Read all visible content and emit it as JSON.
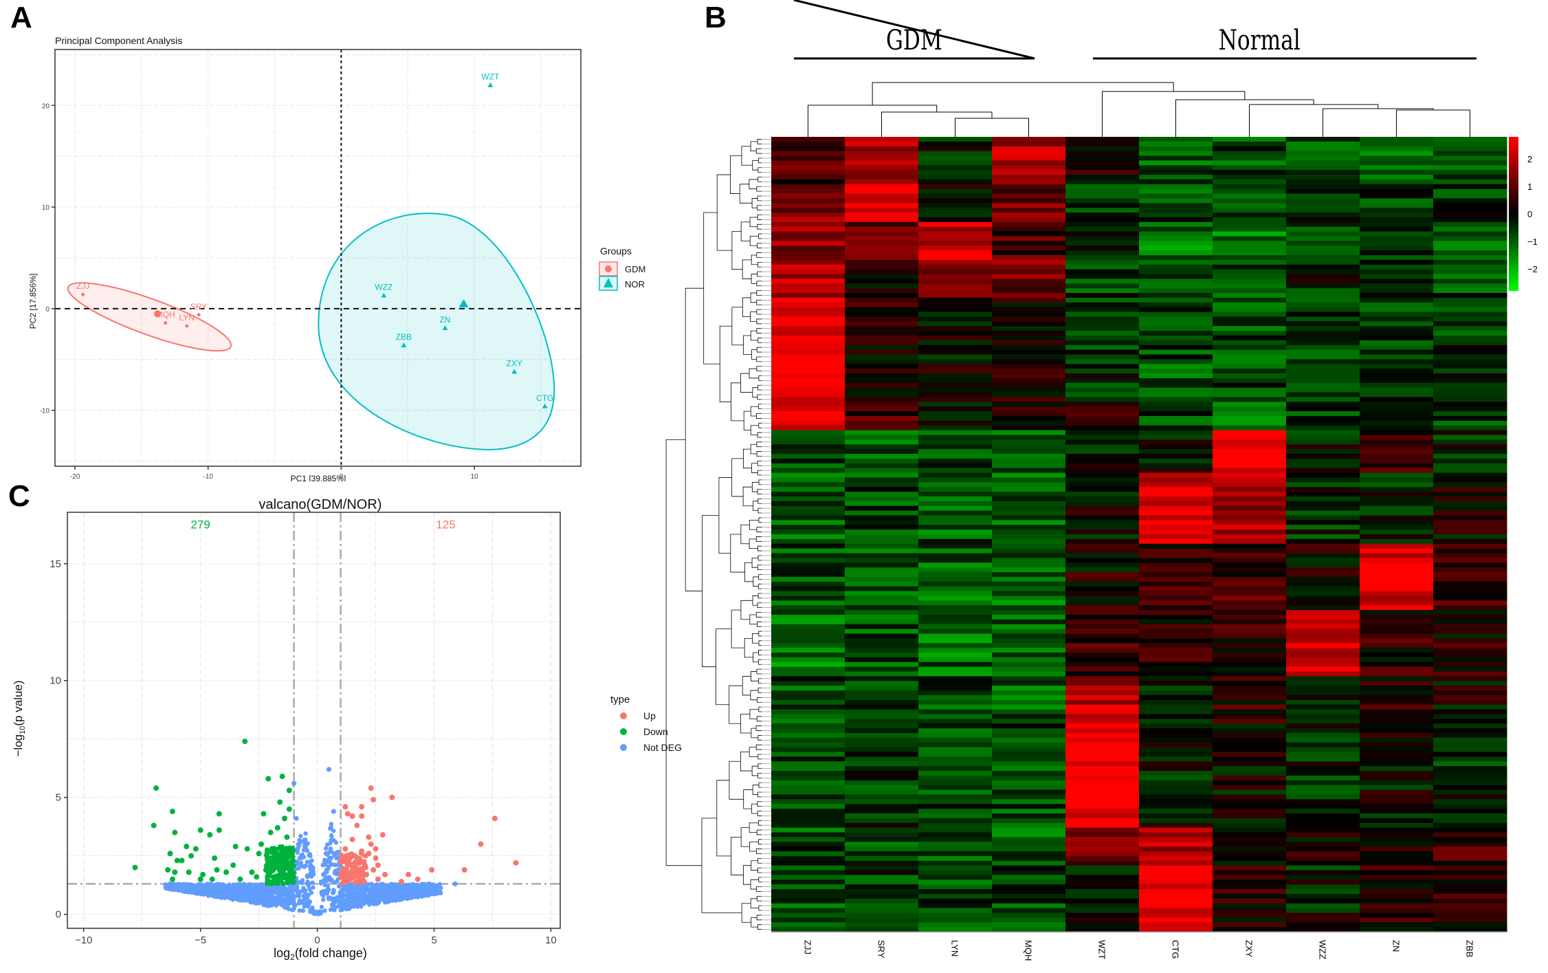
{
  "panels": {
    "a": {
      "label": "A"
    },
    "b": {
      "label": "B"
    },
    "c": {
      "label": "C"
    }
  },
  "chart_data": [
    {
      "id": "pca",
      "type": "scatter",
      "title": "Principal Component Analysis",
      "xlabel": "PC1 [39.885%]",
      "ylabel": "PC2 [17.856%]",
      "xlim": [
        -21.5,
        18
      ],
      "ylim": [
        -15.5,
        25.5
      ],
      "xticks": [
        -20,
        -10,
        0,
        10
      ],
      "yticks": [
        -10,
        0,
        10,
        20
      ],
      "xtick_labels": [
        "-20",
        "-10",
        "0",
        "10"
      ],
      "ytick_labels": [
        "-10",
        "0",
        "10",
        "20"
      ],
      "grid": true,
      "reference_lines": {
        "x": 0,
        "y": 0,
        "style": "dashed"
      },
      "legend": {
        "title": "Groups",
        "placement": "right",
        "entries": [
          {
            "name": "GDM",
            "color": "#f8766d",
            "shape": "circle"
          },
          {
            "name": "NOR",
            "color": "#00bfc4",
            "shape": "triangle"
          }
        ]
      },
      "series": [
        {
          "name": "GDM",
          "color": "#f8766d",
          "shape": "circle",
          "points": [
            {
              "label": "ZJJ",
              "x": -19.4,
              "y": 1.4
            },
            {
              "label": "MQH",
              "x": -13.2,
              "y": -1.4
            },
            {
              "label": "LYN",
              "x": -11.6,
              "y": -1.7
            },
            {
              "label": "SRY",
              "x": -10.7,
              "y": -0.6
            }
          ],
          "centroid": {
            "x": -13.8,
            "y": -0.5
          },
          "ellipse": {
            "cx": -14.4,
            "cy": -0.8,
            "rx": 6.5,
            "ry": 1.25,
            "angle_deg": 20
          }
        },
        {
          "name": "NOR",
          "color": "#00bfc4",
          "shape": "triangle",
          "points": [
            {
              "label": "WZT",
              "x": 11.2,
              "y": 22.0
            },
            {
              "label": "WZZ",
              "x": 3.2,
              "y": 1.3
            },
            {
              "label": "ZN",
              "x": 7.8,
              "y": -1.9
            },
            {
              "label": "ZBB",
              "x": 4.7,
              "y": -3.6
            },
            {
              "label": "ZXY",
              "x": 13.0,
              "y": -6.2
            },
            {
              "label": "CTG",
              "x": 15.3,
              "y": -9.6
            }
          ],
          "centroid": {
            "x": 9.2,
            "y": 0.4
          }
        }
      ]
    },
    {
      "id": "heatmap",
      "type": "heatmap",
      "group_labels": [
        {
          "name": "GDM",
          "columns": [
            "ZJJ",
            "SRY",
            "LYN",
            "MQH"
          ]
        },
        {
          "name": "Normal",
          "columns": [
            "WZT",
            "CTG",
            "ZXY",
            "WZZ",
            "ZN",
            "ZBB"
          ]
        }
      ],
      "columns": [
        "ZJJ",
        "SRY",
        "LYN",
        "MQH",
        "WZT",
        "CTG",
        "ZXY",
        "WZZ",
        "ZN",
        "ZBB"
      ],
      "colorbar": {
        "ticks": [
          2,
          1,
          0,
          -1,
          -2
        ],
        "tick_labels": [
          "2",
          "1",
          "0",
          "−1",
          "−2"
        ],
        "range": [
          -2.8,
          2.8
        ],
        "low_color": "#00ff00",
        "mid_color": "#000000",
        "high_color": "#ff0000"
      },
      "row_blocks": [
        {
          "rows": 10,
          "values": [
            0.8,
            2.0,
            -0.3,
            1.8,
            0.3,
            -1.0,
            -0.8,
            -0.9,
            -1.1,
            -1.0
          ]
        },
        {
          "rows": 8,
          "values": [
            1.5,
            2.8,
            0.0,
            1.2,
            -0.4,
            -0.7,
            -0.9,
            -0.6,
            -0.5,
            -0.6
          ]
        },
        {
          "rows": 8,
          "values": [
            1.6,
            1.2,
            2.2,
            0.8,
            -0.5,
            -1.3,
            -1.2,
            -0.7,
            -0.4,
            -0.8
          ]
        },
        {
          "rows": 8,
          "values": [
            2.0,
            0.3,
            1.6,
            1.2,
            -0.6,
            -1.0,
            -0.9,
            -0.3,
            -0.6,
            -0.8
          ]
        },
        {
          "rows": 22,
          "values": [
            2.8,
            0.3,
            0.0,
            0.2,
            -0.4,
            -0.8,
            -0.7,
            -0.5,
            -0.6,
            -0.6
          ]
        },
        {
          "rows": 6,
          "values": [
            2.5,
            0.8,
            0.1,
            0.4,
            0.2,
            -0.8,
            -1.1,
            -0.6,
            -0.6,
            -0.5
          ]
        },
        {
          "rows": 9,
          "values": [
            -0.7,
            -1.0,
            -0.8,
            -1.1,
            -0.1,
            -0.2,
            2.8,
            -0.2,
            0.4,
            -0.4
          ]
        },
        {
          "rows": 15,
          "values": [
            -1.0,
            -0.7,
            -0.9,
            -0.9,
            0.0,
            2.4,
            1.8,
            -0.4,
            -0.3,
            0.1
          ]
        },
        {
          "rows": 14,
          "values": [
            -0.9,
            -0.8,
            -1.0,
            -1.1,
            0.2,
            0.6,
            0.7,
            0.2,
            2.4,
            0.6
          ]
        },
        {
          "rows": 14,
          "values": [
            -1.2,
            -0.8,
            -1.1,
            -1.0,
            0.6,
            0.5,
            0.4,
            2.2,
            0.4,
            0.3
          ]
        },
        {
          "rows": 10,
          "values": [
            -0.8,
            -0.6,
            -0.8,
            -0.9,
            2.0,
            -0.3,
            0.5,
            0.0,
            0.4,
            0.1
          ]
        },
        {
          "rows": 22,
          "values": [
            -0.7,
            -0.5,
            -0.7,
            -0.7,
            2.8,
            -0.2,
            0.0,
            -0.4,
            -0.1,
            -0.4
          ]
        },
        {
          "rows": 8,
          "values": [
            -0.8,
            -0.7,
            -0.9,
            -0.9,
            1.2,
            2.0,
            0.1,
            0.2,
            0.5,
            0.6
          ]
        },
        {
          "rows": 14,
          "values": [
            -0.8,
            -0.6,
            -0.7,
            -0.7,
            -0.1,
            2.8,
            0.3,
            -0.2,
            0.4,
            0.5
          ]
        }
      ],
      "row_count_note": "rows clustered by dendrogram on left; columns clustered by dendrogram on top"
    },
    {
      "id": "volcano",
      "type": "scatter",
      "title": "valcano(GDM/NOR)",
      "xlabel": "log2(fold change)",
      "ylabel": "-log10(p value)",
      "xlim": [
        -10.7,
        10.4
      ],
      "ylim": [
        -0.6,
        17.2
      ],
      "xticks": [
        -10,
        -5,
        0,
        5,
        10
      ],
      "yticks": [
        0,
        5,
        10,
        15
      ],
      "xtick_labels": [
        "−10",
        "−5",
        "0",
        "5",
        "10"
      ],
      "ytick_labels": [
        "0",
        "5",
        "10",
        "15"
      ],
      "grid": true,
      "threshold_lines": {
        "x": [
          -1,
          1
        ],
        "y": 1.3
      },
      "annotations": [
        {
          "text": "279",
          "color": "#00b33c",
          "x": -5.0,
          "y": 16.8
        },
        {
          "text": "125",
          "color": "#f8766d",
          "x": 5.5,
          "y": 16.8
        }
      ],
      "counts": {
        "down": 279,
        "up": 125
      },
      "legend": {
        "title": "type",
        "placement": "right",
        "entries": [
          {
            "name": "Up",
            "color": "#f8766d"
          },
          {
            "name": "Down",
            "color": "#00b33c"
          },
          {
            "name": "Not DEG",
            "color": "#619cff"
          }
        ]
      },
      "series": [
        {
          "name": "Up",
          "color": "#f8766d",
          "points": [
            [
              2.3,
              5.4
            ],
            [
              3.2,
              5.0
            ],
            [
              2.4,
              4.9
            ],
            [
              1.2,
              4.6
            ],
            [
              1.9,
              4.6
            ],
            [
              1.3,
              4.3
            ],
            [
              1.5,
              4.2
            ],
            [
              1.9,
              4.2
            ],
            [
              1.7,
              3.8
            ],
            [
              2.8,
              3.4
            ],
            [
              2.2,
              3.3
            ],
            [
              1.5,
              3.2
            ],
            [
              2.3,
              3.0
            ],
            [
              2.5,
              2.8
            ],
            [
              1.2,
              2.8
            ],
            [
              1.9,
              2.7
            ],
            [
              2.2,
              2.6
            ],
            [
              1.6,
              2.5
            ],
            [
              1.4,
              2.4
            ],
            [
              2.5,
              2.4
            ],
            [
              1.1,
              2.3
            ],
            [
              1.8,
              2.2
            ],
            [
              2.6,
              2.1
            ],
            [
              1.3,
              2.1
            ],
            [
              2.0,
              2.0
            ],
            [
              1.5,
              1.9
            ],
            [
              2.4,
              1.9
            ],
            [
              1.2,
              1.8
            ],
            [
              2.1,
              1.7
            ],
            [
              2.9,
              1.7
            ],
            [
              1.7,
              1.6
            ],
            [
              1.4,
              1.5
            ],
            [
              2.6,
              1.5
            ],
            [
              3.9,
              1.7
            ],
            [
              4.9,
              1.9
            ],
            [
              3.6,
              1.4
            ],
            [
              4.3,
              1.5
            ],
            [
              6.3,
              1.9
            ],
            [
              7.0,
              3.0
            ],
            [
              7.6,
              4.1
            ],
            [
              8.5,
              2.2
            ],
            [
              1.3,
              1.4
            ],
            [
              2.0,
              1.4
            ],
            [
              1.0,
              1.6
            ]
          ]
        },
        {
          "name": "Down",
          "color": "#00b33c",
          "points": [
            [
              -3.1,
              7.4
            ],
            [
              -2.1,
              5.8
            ],
            [
              -1.5,
              5.9
            ],
            [
              -1.2,
              5.3
            ],
            [
              -6.9,
              5.4
            ],
            [
              -1.6,
              4.8
            ],
            [
              -1.2,
              4.5
            ],
            [
              -6.2,
              4.4
            ],
            [
              -2.3,
              4.3
            ],
            [
              -1.4,
              4.1
            ],
            [
              -4.2,
              4.3
            ],
            [
              -7.0,
              3.8
            ],
            [
              -4.2,
              3.6
            ],
            [
              -5.0,
              3.6
            ],
            [
              -1.7,
              3.7
            ],
            [
              -2.0,
              3.5
            ],
            [
              -6.1,
              3.5
            ],
            [
              -4.6,
              3.4
            ],
            [
              -1.3,
              3.3
            ],
            [
              -2.4,
              3.0
            ],
            [
              -5.6,
              2.9
            ],
            [
              -3.5,
              2.9
            ],
            [
              -5.2,
              2.8
            ],
            [
              -3.0,
              2.8
            ],
            [
              -6.3,
              2.6
            ],
            [
              -5.4,
              2.5
            ],
            [
              -2.5,
              2.6
            ],
            [
              -4.4,
              2.4
            ],
            [
              -2.0,
              2.4
            ],
            [
              -6.0,
              2.3
            ],
            [
              -5.8,
              2.3
            ],
            [
              -3.6,
              2.1
            ],
            [
              -1.5,
              2.2
            ],
            [
              -6.4,
              1.9
            ],
            [
              -6.1,
              1.8
            ],
            [
              -5.5,
              1.8
            ],
            [
              -4.9,
              1.7
            ],
            [
              -4.3,
              1.9
            ],
            [
              -3.9,
              1.8
            ],
            [
              -2.8,
              1.8
            ],
            [
              -2.2,
              1.9
            ],
            [
              -1.8,
              2.0
            ],
            [
              -1.4,
              1.7
            ],
            [
              -5.0,
              1.5
            ],
            [
              -6.2,
              1.5
            ],
            [
              -3.3,
              1.5
            ],
            [
              -7.8,
              2.0
            ],
            [
              -4.5,
              1.5
            ],
            [
              -2.6,
              1.6
            ],
            [
              -1.1,
              1.4
            ]
          ]
        }
      ],
      "not_deg_envelope": "dense V-shaped cloud from x=-6.5 to 5.3, y from 0 up to ~1.3 (outer) and up to ~4 near x=±1"
    }
  ]
}
